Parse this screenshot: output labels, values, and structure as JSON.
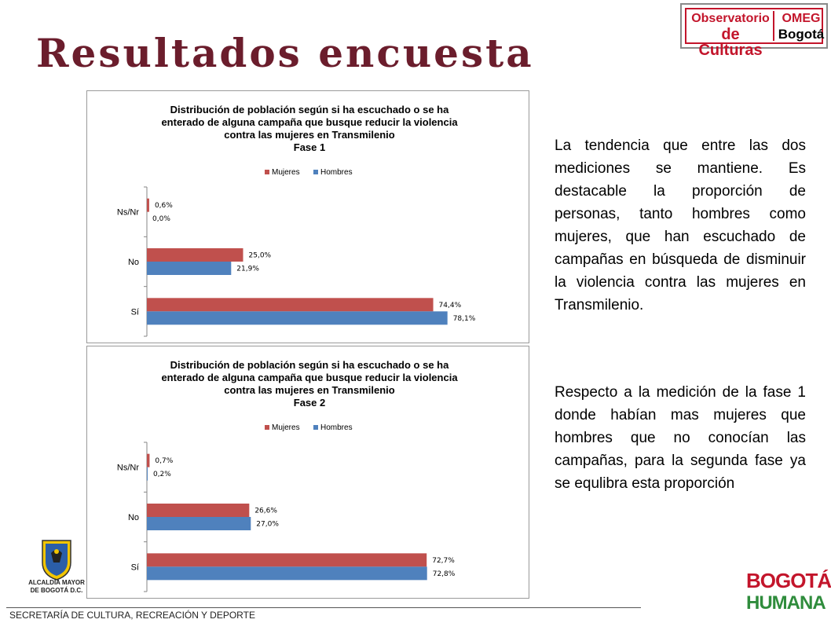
{
  "slide": {
    "title": "Resultados encuesta",
    "footer": "SECRETARÍA DE CULTURA, RECREACIÓN Y DEPORTE"
  },
  "logos": {
    "observatorio_line1": "Observatorio",
    "observatorio_line2": "de Culturas",
    "omeg_line1": "OMEG",
    "omeg_line2": "Bogotá",
    "alcaldia_line1": "ALCALDÍA MAYOR",
    "alcaldia_line2": "DE BOGOTÁ D.C.",
    "bogota_humana_line1": "BOGOTÁ",
    "bogota_humana_line2": "HUMANA"
  },
  "colors": {
    "title": "#6b1d2c",
    "mujeres": "#c0504d",
    "hombres": "#4f81bd",
    "axis": "#868686"
  },
  "description": {
    "paragraph1": "La tendencia que entre las dos mediciones se mantiene. Es destacable la proporción de personas, tanto hombres como mujeres, que han escuchado de campañas en búsqueda de disminuir la violencia contra las mujeres en Transmilenio.",
    "paragraph2": "Respecto a la medición de la fase 1 donde habían mas mujeres que hombres que no conocían las campañas, para la segunda fase ya se equlibra esta proporción"
  },
  "chart_data": [
    {
      "type": "bar",
      "orientation": "horizontal",
      "title_lines": [
        "Distribución de población según si ha escuchado o se ha",
        "enterado de alguna campaña que busque reducir la violencia",
        "contra las mujeres en Transmilenio",
        "Fase 1"
      ],
      "categories": [
        "Ns/Nr",
        "No",
        "Sí"
      ],
      "series": [
        {
          "name": "Mujeres",
          "values": [
            0.6,
            25.0,
            74.4
          ],
          "labels": [
            "0,6%",
            "25,0%",
            "74,4%"
          ],
          "color": "#c0504d"
        },
        {
          "name": "Hombres",
          "values": [
            0.0,
            21.9,
            78.1
          ],
          "labels": [
            "0,0%",
            "21,9%",
            "78,1%"
          ],
          "color": "#4f81bd"
        }
      ],
      "xlim": [
        0,
        100
      ],
      "legend": "top",
      "grid": false
    },
    {
      "type": "bar",
      "orientation": "horizontal",
      "title_lines": [
        "Distribución de población según si ha escuchado o se ha",
        "enterado de alguna campaña que busque reducir la violencia",
        "contra las mujeres en Transmilenio",
        "Fase 2"
      ],
      "categories": [
        "Ns/Nr",
        "No",
        "Sí"
      ],
      "series": [
        {
          "name": "Mujeres",
          "values": [
            0.7,
            26.6,
            72.7
          ],
          "labels": [
            "0,7%",
            "26,6%",
            "72,7%"
          ],
          "color": "#c0504d"
        },
        {
          "name": "Hombres",
          "values": [
            0.2,
            27.0,
            72.8
          ],
          "labels": [
            "0,2%",
            "27,0%",
            "72,8%"
          ],
          "color": "#4f81bd"
        }
      ],
      "xlim": [
        0,
        100
      ],
      "legend": "top",
      "grid": false
    }
  ]
}
